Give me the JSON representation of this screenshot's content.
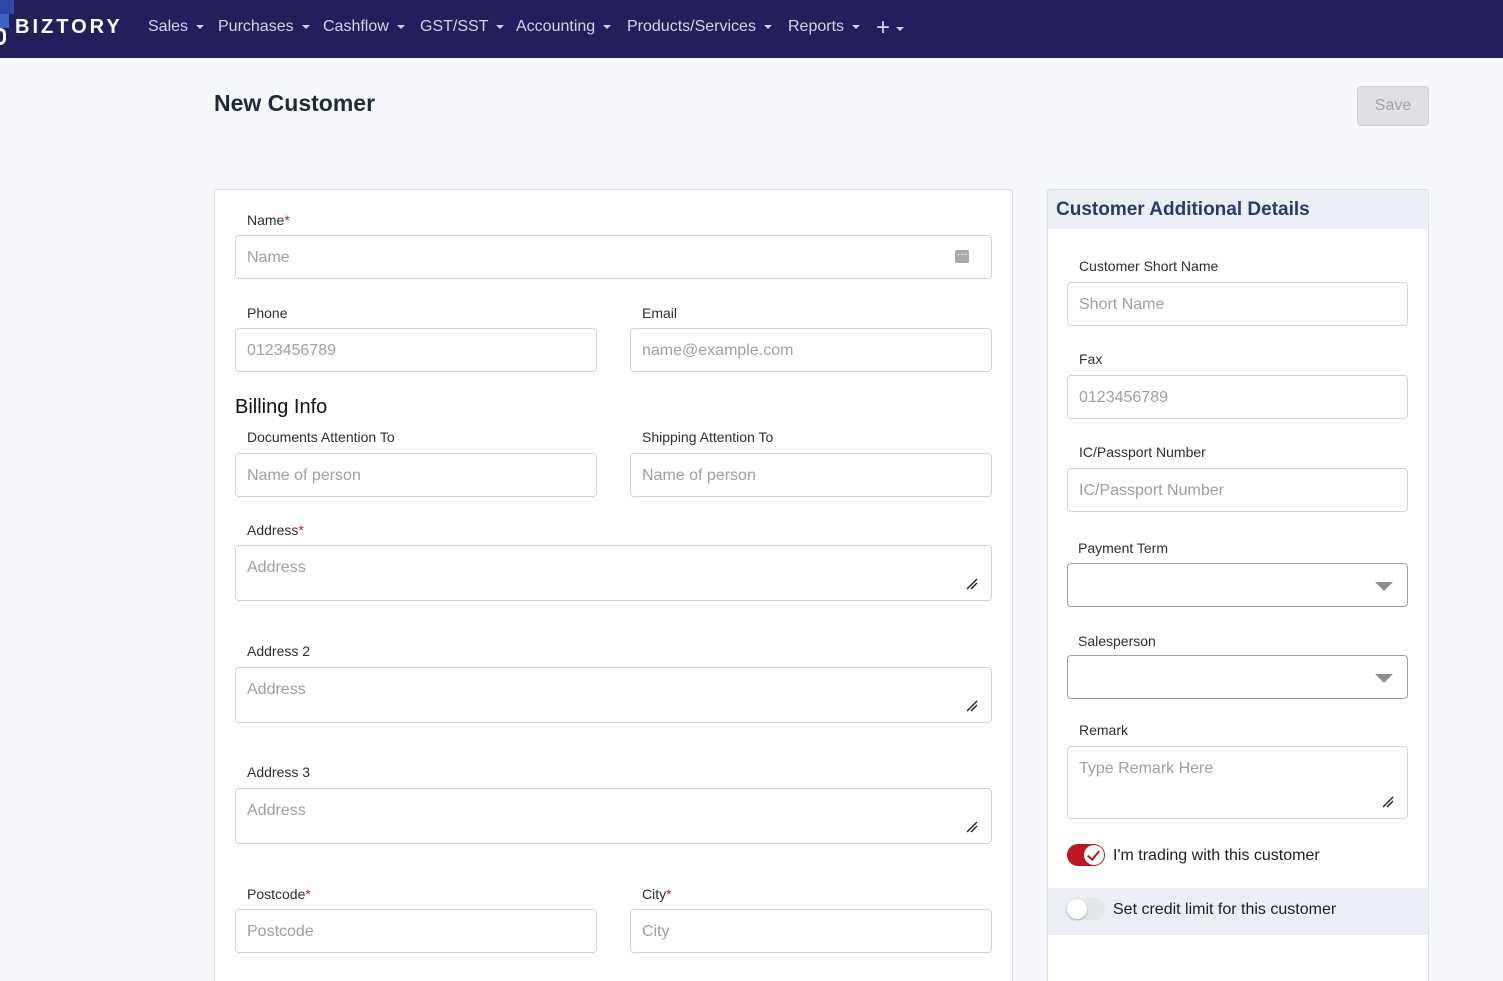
{
  "brand": {
    "name": "BIZTORY"
  },
  "nav": {
    "items": [
      {
        "label": "Sales"
      },
      {
        "label": "Purchases"
      },
      {
        "label": "Cashflow"
      },
      {
        "label": "GST/SST"
      },
      {
        "label": "Accounting"
      },
      {
        "label": "Products/Services"
      },
      {
        "label": "Reports"
      }
    ],
    "plus_label": "+"
  },
  "page": {
    "title": "New Customer",
    "save_label": "Save"
  },
  "form": {
    "name": {
      "label": "Name",
      "required": "*",
      "placeholder": "Name"
    },
    "phone": {
      "label": "Phone",
      "placeholder": "0123456789"
    },
    "email": {
      "label": "Email",
      "placeholder": "name@example.com"
    },
    "billing_title": "Billing Info",
    "documents_attention": {
      "label": "Documents Attention To",
      "placeholder": "Name of person"
    },
    "shipping_attention": {
      "label": "Shipping Attention To",
      "placeholder": "Name of person"
    },
    "address": {
      "label": "Address",
      "required": "*",
      "placeholder": "Address"
    },
    "address2": {
      "label": "Address 2",
      "placeholder": "Address"
    },
    "address3": {
      "label": "Address 3",
      "placeholder": "Address"
    },
    "postcode": {
      "label": "Postcode",
      "required": "*",
      "placeholder": "Postcode"
    },
    "city": {
      "label": "City",
      "required": "*",
      "placeholder": "City"
    }
  },
  "side": {
    "title": "Customer Additional Details",
    "short_name": {
      "label": "Customer Short Name",
      "placeholder": "Short Name"
    },
    "fax": {
      "label": "Fax",
      "placeholder": "0123456789"
    },
    "ic": {
      "label": "IC/Passport Number",
      "placeholder": "IC/Passport Number"
    },
    "payment_term": {
      "label": "Payment Term",
      "value": ""
    },
    "salesperson": {
      "label": "Salesperson",
      "value": ""
    },
    "remark": {
      "label": "Remark",
      "placeholder": "Type Remark Here"
    },
    "trading_toggle": {
      "label": "I'm trading with this customer",
      "on": true
    },
    "credit_toggle": {
      "label": "Set credit limit for this customer",
      "on": false
    }
  },
  "colors": {
    "nav_bg": "#231f5c",
    "accent": "#c0141f",
    "panel_title": "#2a3a6b"
  }
}
